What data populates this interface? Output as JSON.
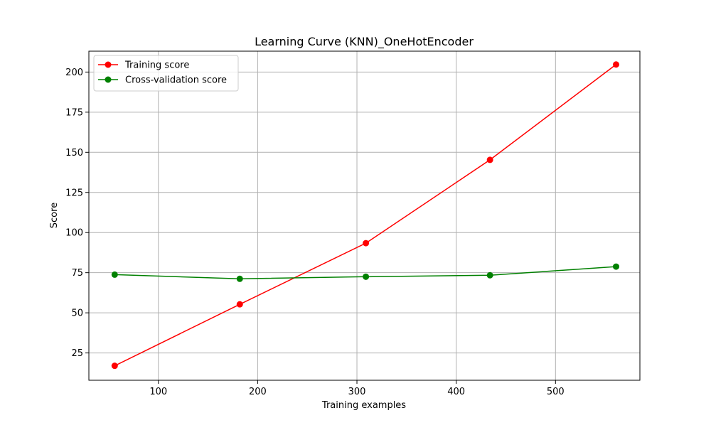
{
  "chart_data": {
    "type": "line",
    "title": "Learning Curve (KNN)_OneHotEncoder",
    "xlabel": "Training examples",
    "ylabel": "Score",
    "xlim": [
      30,
      585
    ],
    "ylim": [
      8,
      213
    ],
    "xticks": [
      100,
      200,
      300,
      400,
      500
    ],
    "yticks": [
      25,
      50,
      75,
      100,
      125,
      150,
      175,
      200
    ],
    "grid": true,
    "legend_position": "top-left",
    "x": [
      56,
      182,
      309,
      434,
      561
    ],
    "series": [
      {
        "name": "Training score",
        "color": "#ff0000",
        "marker": "circle",
        "values": [
          17,
          55.3,
          93.4,
          145.3,
          204.7
        ]
      },
      {
        "name": "Cross-validation score",
        "color": "#008000",
        "marker": "circle",
        "values": [
          73.8,
          71.2,
          72.5,
          73.4,
          78.8
        ]
      }
    ]
  }
}
